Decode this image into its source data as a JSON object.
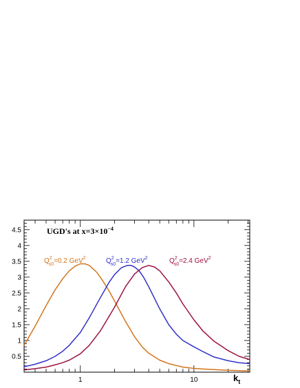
{
  "chart_data": {
    "type": "line",
    "title": "UGD's at x=3×10",
    "title_exp": "−4",
    "xlabel": "k",
    "xlabel_sub": "t",
    "ylabel": "",
    "xscale": "log",
    "xlim": [
      0.32,
      31
    ],
    "ylim": [
      0.0,
      4.8
    ],
    "x_ticklabels": [
      "1",
      "10"
    ],
    "y_ticklabels": [
      "0.5",
      "1",
      "1.5",
      "2",
      "2.5",
      "3",
      "3.5",
      "4",
      "4.5"
    ],
    "grid": false,
    "legend": "none",
    "annotations": [
      {
        "base": "Q",
        "sup": "2",
        "sub": "s0",
        "rest": "=0.2 GeV",
        "unit_sup": "2",
        "color": "#d4731a"
      },
      {
        "base": "Q",
        "sup": "2",
        "sub": "s0",
        "rest": "=1.2 GeV",
        "unit_sup": "2",
        "color": "#3030c8"
      },
      {
        "base": "Q",
        "sup": "2",
        "sub": "s0",
        "rest": "=2.4 GeV",
        "unit_sup": "2",
        "color": "#9c1040"
      }
    ],
    "series": [
      {
        "color": "#d4731a",
        "x": [
          0.32,
          0.4,
          0.5,
          0.6,
          0.7,
          0.8,
          0.9,
          1.0,
          1.1,
          1.2,
          1.4,
          1.6,
          1.8,
          2.0,
          2.5,
          3.0,
          3.5,
          4.0,
          5.0,
          6.0,
          8.0,
          10.0,
          12.0,
          15.0,
          20.0,
          25.0,
          31.0
        ],
        "y": [
          0.85,
          1.45,
          2.1,
          2.6,
          2.95,
          3.2,
          3.35,
          3.42,
          3.42,
          3.37,
          3.15,
          2.85,
          2.55,
          2.25,
          1.6,
          1.12,
          0.8,
          0.6,
          0.38,
          0.27,
          0.16,
          0.12,
          0.1,
          0.08,
          0.06,
          0.05,
          0.04
        ]
      },
      {
        "color": "#3030c8",
        "x": [
          0.32,
          0.4,
          0.5,
          0.6,
          0.7,
          0.8,
          1.0,
          1.2,
          1.5,
          1.8,
          2.0,
          2.3,
          2.6,
          2.8,
          3.0,
          3.3,
          3.6,
          4.0,
          5.0,
          6.0,
          7.0,
          8.0,
          10.0,
          12.0,
          15.0,
          20.0,
          25.0,
          31.0
        ],
        "y": [
          0.17,
          0.25,
          0.36,
          0.5,
          0.66,
          0.85,
          1.25,
          1.72,
          2.35,
          2.85,
          3.08,
          3.3,
          3.37,
          3.37,
          3.32,
          3.2,
          3.0,
          2.7,
          2.0,
          1.5,
          1.2,
          1.0,
          0.8,
          0.65,
          0.48,
          0.36,
          0.3,
          0.27
        ]
      },
      {
        "color": "#9c1040",
        "x": [
          0.32,
          0.4,
          0.5,
          0.6,
          0.7,
          0.8,
          1.0,
          1.2,
          1.5,
          2.0,
          2.5,
          3.0,
          3.5,
          4.0,
          4.5,
          5.0,
          6.0,
          7.0,
          8.0,
          10.0,
          12.0,
          15.0,
          20.0,
          25.0,
          31.0
        ],
        "y": [
          0.07,
          0.11,
          0.16,
          0.23,
          0.3,
          0.38,
          0.58,
          0.85,
          1.3,
          2.05,
          2.7,
          3.1,
          3.3,
          3.37,
          3.32,
          3.2,
          2.85,
          2.5,
          2.15,
          1.65,
          1.3,
          0.98,
          0.68,
          0.5,
          0.4
        ]
      }
    ]
  }
}
